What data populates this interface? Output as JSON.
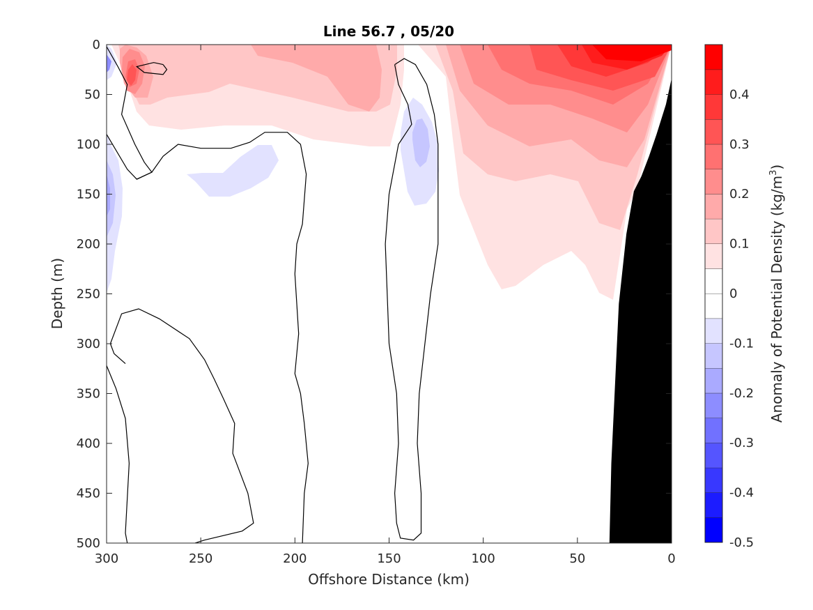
{
  "chart_data": {
    "type": "contour",
    "title": "Line 56.7 , 05/20",
    "xlabel": "Offshore Distance (km)",
    "ylabel": "Depth (m)",
    "colorbar_label": "Anomaly of Potential Density (kg/m",
    "colorbar_label_sup": "3",
    "colorbar_label_close": ")",
    "xlim": [
      300,
      0
    ],
    "ylim": [
      0,
      500
    ],
    "x_reversed": true,
    "y_reversed": true,
    "xticks": [
      300,
      250,
      200,
      150,
      100,
      50,
      0
    ],
    "xtick_labels": [
      "300",
      "250",
      "200",
      "150",
      "100",
      "50",
      "0"
    ],
    "yticks": [
      0,
      50,
      100,
      150,
      200,
      250,
      300,
      350,
      400,
      450,
      500
    ],
    "ytick_labels": [
      "0",
      "50",
      "100",
      "150",
      "200",
      "250",
      "300",
      "350",
      "400",
      "450",
      "500"
    ],
    "colorbar_ticks": [
      0.4,
      0.3,
      0.2,
      0.1,
      0,
      -0.1,
      -0.2,
      -0.3,
      -0.4,
      -0.5
    ],
    "colorbar_tick_labels": [
      "0.4",
      "0.3",
      "0.2",
      "0.1",
      "0",
      "-0.1",
      "-0.2",
      "-0.3",
      "-0.4",
      "-0.5"
    ],
    "colorbar_range": [
      -0.5,
      0.5
    ],
    "colorbar_colors": [
      "#0000ff",
      "#1c1cff",
      "#3838ff",
      "#5555ff",
      "#7171ff",
      "#8d8dff",
      "#aaaaff",
      "#c6c6ff",
      "#e2e2ff",
      "#ffffff",
      "#ffffff",
      "#ffe2e2",
      "#ffc6c6",
      "#ffaaaa",
      "#ff8d8d",
      "#ff7171",
      "#ff5555",
      "#ff3838",
      "#ff1c1c",
      "#ff0000"
    ],
    "zero_contour_lines": [
      [
        [
          300,
          2
        ],
        [
          294,
          22
        ],
        [
          289,
          40
        ],
        [
          292,
          70
        ],
        [
          285,
          100
        ],
        [
          280,
          118
        ],
        [
          276,
          128
        ],
        [
          284,
          135
        ],
        [
          289,
          125
        ],
        [
          300,
          90
        ]
      ],
      [
        [
          270,
          20
        ],
        [
          275,
          18
        ],
        [
          284,
          22
        ],
        [
          280,
          28
        ],
        [
          270,
          30
        ],
        [
          268,
          25
        ],
        [
          270,
          20
        ]
      ],
      [
        [
          284,
          135
        ],
        [
          276,
          128
        ],
        [
          270,
          112
        ],
        [
          262,
          100
        ],
        [
          250,
          104
        ],
        [
          234,
          104
        ],
        [
          224,
          98
        ],
        [
          216,
          88
        ],
        [
          204,
          88
        ],
        [
          197,
          100
        ],
        [
          194,
          130
        ],
        [
          196,
          180
        ],
        [
          199,
          200
        ],
        [
          200,
          230
        ],
        [
          198,
          290
        ],
        [
          200,
          330
        ],
        [
          197,
          350
        ],
        [
          195,
          380
        ],
        [
          193,
          420
        ],
        [
          195,
          450
        ],
        [
          196,
          500
        ]
      ],
      [
        [
          300,
          322
        ],
        [
          295,
          345
        ],
        [
          290,
          375
        ],
        [
          288,
          420
        ],
        [
          290,
          490
        ],
        [
          289,
          500
        ]
      ],
      [
        [
          290,
          320
        ],
        [
          296,
          310
        ],
        [
          298,
          300
        ],
        [
          292,
          270
        ],
        [
          283,
          265
        ],
        [
          272,
          275
        ],
        [
          256,
          295
        ],
        [
          248,
          316
        ],
        [
          243,
          335
        ],
        [
          238,
          355
        ],
        [
          232,
          380
        ],
        [
          233,
          410
        ],
        [
          225,
          450
        ],
        [
          222,
          480
        ],
        [
          228,
          488
        ],
        [
          248,
          497
        ],
        [
          253,
          500
        ]
      ],
      [
        [
          147,
          20
        ],
        [
          145,
          40
        ],
        [
          140,
          60
        ],
        [
          138,
          80
        ],
        [
          145,
          100
        ],
        [
          150,
          150
        ],
        [
          152,
          200
        ],
        [
          150,
          300
        ],
        [
          146,
          350
        ],
        [
          145,
          400
        ],
        [
          147,
          450
        ],
        [
          146,
          480
        ],
        [
          144,
          495
        ],
        [
          137,
          497
        ],
        [
          133,
          490
        ],
        [
          133,
          450
        ],
        [
          135,
          400
        ],
        [
          134,
          350
        ],
        [
          131,
          300
        ],
        [
          128,
          250
        ],
        [
          124,
          200
        ],
        [
          124,
          150
        ],
        [
          124,
          100
        ],
        [
          126,
          70
        ],
        [
          130,
          40
        ],
        [
          136,
          20
        ],
        [
          142,
          14
        ],
        [
          147,
          20
        ]
      ]
    ],
    "coastal_bottom_polygon": [
      [
        0,
        34
      ],
      [
        3,
        60
      ],
      [
        8,
        90
      ],
      [
        12,
        112
      ],
      [
        16,
        132
      ],
      [
        20,
        147
      ],
      [
        24,
        190
      ],
      [
        28,
        260
      ],
      [
        30,
        340
      ],
      [
        32,
        420
      ],
      [
        33,
        500
      ],
      [
        0,
        500
      ]
    ]
  }
}
